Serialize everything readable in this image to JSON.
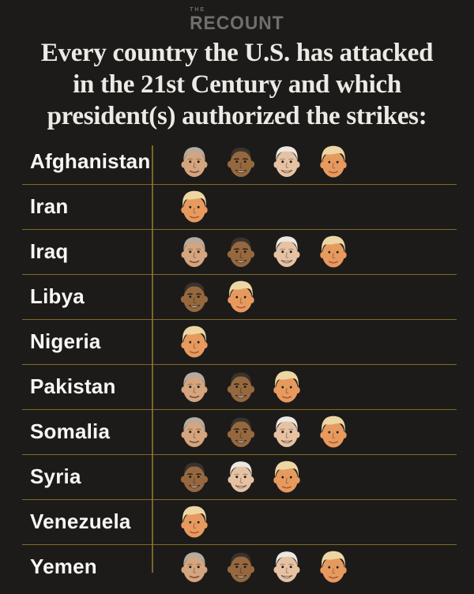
{
  "logo": {
    "top": "THE",
    "main": "RECOUNT"
  },
  "title": {
    "lines": [
      "Every country the U.S. has attacked",
      "in the 21st Century and which",
      "president(s) authorized the strikes:"
    ]
  },
  "colors": {
    "background": "#1d1b19",
    "divider_gold": "#8f7a2a",
    "title_text": "#edeae6",
    "country_text": "#f7f7f7",
    "logo_gray": "#6f6f6f"
  },
  "presidents": {
    "bush": {
      "name": "George W. Bush",
      "skin": "#d4a57e",
      "hair": "#b4aca0"
    },
    "obama": {
      "name": "Barack Obama",
      "skin": "#96683f",
      "hair": "#38332d"
    },
    "biden": {
      "name": "Joe Biden",
      "skin": "#e7c2a2",
      "hair": "#ebe8e2"
    },
    "trump": {
      "name": "Donald Trump",
      "skin": "#e89a5e",
      "hair": "#ecd7a4"
    }
  },
  "rows": [
    {
      "country": "Afghanistan",
      "presidents": [
        "bush",
        "obama",
        "biden",
        "trump"
      ]
    },
    {
      "country": "Iran",
      "presidents": [
        "trump"
      ]
    },
    {
      "country": "Iraq",
      "presidents": [
        "bush",
        "obama",
        "biden",
        "trump"
      ]
    },
    {
      "country": "Libya",
      "presidents": [
        "obama",
        "trump"
      ]
    },
    {
      "country": "Nigeria",
      "presidents": [
        "trump"
      ]
    },
    {
      "country": "Pakistan",
      "presidents": [
        "bush",
        "obama",
        "trump"
      ]
    },
    {
      "country": "Somalia",
      "presidents": [
        "bush",
        "obama",
        "biden",
        "trump"
      ]
    },
    {
      "country": "Syria",
      "presidents": [
        "obama",
        "biden",
        "trump"
      ]
    },
    {
      "country": "Venezuela",
      "presidents": [
        "trump"
      ]
    },
    {
      "country": "Yemen",
      "presidents": [
        "bush",
        "obama",
        "biden",
        "trump"
      ]
    }
  ]
}
